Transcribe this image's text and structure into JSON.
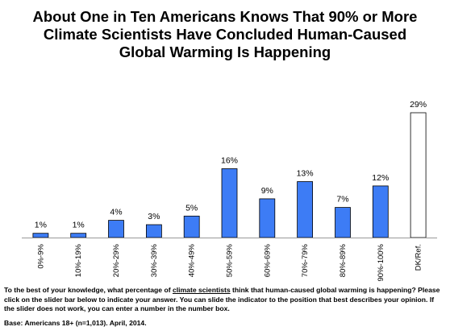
{
  "title_lines": [
    "About One in Ten Americans Knows That 90% or More",
    "Climate Scientists Have Concluded Human-Caused",
    "Global Warming Is Happening"
  ],
  "chart_data": {
    "type": "bar",
    "title": "About One in Ten Americans Knows That 90% or More Climate Scientists Have Concluded Human-Caused Global Warming Is Happening",
    "categories": [
      "0%-9%",
      "10%-19%",
      "20%-29%",
      "30%-39%",
      "40%-49%",
      "50%-59%",
      "60%-69%",
      "70%-79%",
      "80%-89%",
      "90%-100%",
      "DK/Ref."
    ],
    "values": [
      1,
      1,
      4,
      3,
      5,
      16,
      9,
      13,
      7,
      12,
      29
    ],
    "value_labels": [
      "1%",
      "1%",
      "4%",
      "3%",
      "5%",
      "16%",
      "9%",
      "13%",
      "7%",
      "12%",
      "29%"
    ],
    "bar_colors": [
      "#3D7CF5",
      "#3D7CF5",
      "#3D7CF5",
      "#3D7CF5",
      "#3D7CF5",
      "#3D7CF5",
      "#3D7CF5",
      "#3D7CF5",
      "#3D7CF5",
      "#3D7CF5",
      "#FFFFFF"
    ],
    "ylim": [
      0,
      29
    ],
    "grid": false,
    "xlabel": "",
    "ylabel": ""
  },
  "note": {
    "before": "To the best of your knowledge, what percentage of ",
    "underlined": "climate scientists",
    "after": " think that human-caused global warming is happening? Please click on the slider bar below to indicate your answer. You can slide the indicator to the position that best describes your opinion. If the slider does not work, you can enter a number in the number box."
  },
  "base": "Base: Americans 18+ (n=1,013). April, 2014."
}
